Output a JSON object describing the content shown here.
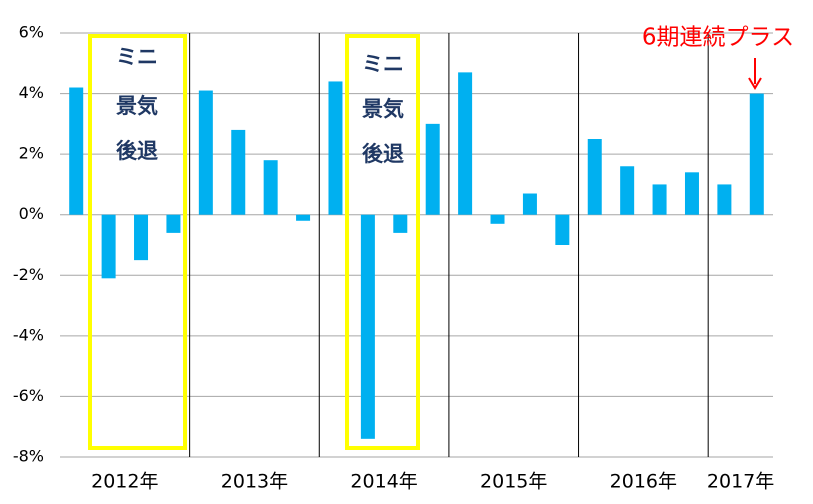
{
  "chart_data": {
    "type": "bar",
    "categories": [
      "2012年",
      null,
      null,
      null,
      "2013年",
      null,
      null,
      null,
      "2014年",
      null,
      null,
      null,
      "2015年",
      null,
      null,
      null,
      "2016年",
      null,
      null,
      null,
      "2017年",
      null
    ],
    "values": [
      4.2,
      -2.1,
      -1.5,
      -0.6,
      4.1,
      2.8,
      1.8,
      -0.2,
      4.4,
      -7.4,
      -0.6,
      3.0,
      4.7,
      -0.3,
      0.7,
      -1.0,
      2.5,
      1.6,
      1.0,
      1.4,
      1.0,
      4.0
    ],
    "color": "#00b0f0",
    "ylim": [
      -8,
      6
    ],
    "yticks": [
      {
        "value": -8,
        "label": "-8%"
      },
      {
        "value": -6,
        "label": "-6%"
      },
      {
        "value": -4,
        "label": "-4%"
      },
      {
        "value": -2,
        "label": "-2%"
      },
      {
        "value": 0,
        "label": "0%"
      },
      {
        "value": 2,
        "label": "2%"
      },
      {
        "value": 4,
        "label": "4%"
      },
      {
        "value": 6,
        "label": "6%"
      }
    ],
    "grid": true,
    "annotations": [
      {
        "lines": [
          "ミニ",
          "景気",
          "後退"
        ]
      },
      {
        "lines": [
          "ミニ",
          "景気",
          "後退"
        ]
      },
      {
        "text": "6期連続プラス"
      }
    ]
  }
}
